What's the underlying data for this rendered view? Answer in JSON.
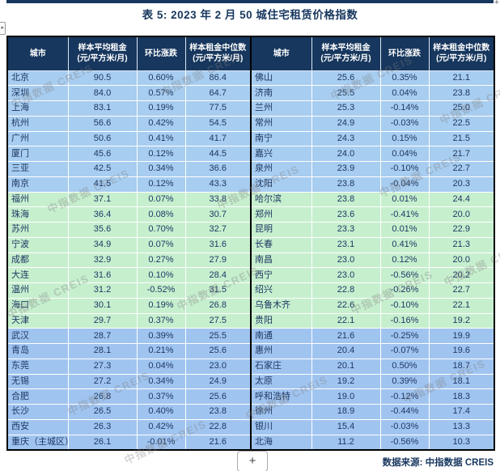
{
  "title": "表 5: 2023 年 2 月 50 城住宅租赁价格指数",
  "source_note": "数据来源: 中指数据 CREIS",
  "add_button_label": "+",
  "top_right_plus": "+",
  "panel_handle_glyph": "▸",
  "watermark": {
    "text": "中指数据 CREIS"
  },
  "colors": {
    "header_bg": "#17375E",
    "band_blue_top": "#A7CDF0",
    "band_green": "#C6EFCE",
    "band_blue_bottom": "#A0C4F0",
    "body_text": "#1F3864",
    "title_text": "#17375E"
  },
  "columns": [
    "城市",
    "样本平均租金\n(元/平方米/月)",
    "环比涨跌",
    "样本租金中位数\n(元/平方米/月)"
  ],
  "tables": [
    {
      "rows": [
        {
          "city": "北京",
          "avg": "90.5",
          "change": "0.60%",
          "median": "86.4",
          "band": "blue1"
        },
        {
          "city": "深圳",
          "avg": "84.0",
          "change": "0.57%",
          "median": "64.7",
          "band": "blue1"
        },
        {
          "city": "上海",
          "avg": "83.1",
          "change": "0.19%",
          "median": "77.5",
          "band": "blue1"
        },
        {
          "city": "杭州",
          "avg": "56.6",
          "change": "0.42%",
          "median": "54.5",
          "band": "blue1"
        },
        {
          "city": "广州",
          "avg": "50.6",
          "change": "0.41%",
          "median": "41.7",
          "band": "blue1"
        },
        {
          "city": "厦门",
          "avg": "45.6",
          "change": "0.12%",
          "median": "44.5",
          "band": "blue1"
        },
        {
          "city": "三亚",
          "avg": "42.5",
          "change": "0.34%",
          "median": "36.6",
          "band": "blue1"
        },
        {
          "city": "南京",
          "avg": "41.5",
          "change": "0.12%",
          "median": "43.3",
          "band": "blue1"
        },
        {
          "city": "福州",
          "avg": "37.1",
          "change": "0.07%",
          "median": "33.8",
          "band": "green"
        },
        {
          "city": "珠海",
          "avg": "36.4",
          "change": "0.08%",
          "median": "30.7",
          "band": "green"
        },
        {
          "city": "苏州",
          "avg": "35.6",
          "change": "0.70%",
          "median": "32.7",
          "band": "green"
        },
        {
          "city": "宁波",
          "avg": "34.9",
          "change": "0.07%",
          "median": "31.6",
          "band": "green"
        },
        {
          "city": "成都",
          "avg": "32.9",
          "change": "0.27%",
          "median": "27.9",
          "band": "green"
        },
        {
          "city": "大连",
          "avg": "31.6",
          "change": "0.10%",
          "median": "28.4",
          "band": "green"
        },
        {
          "city": "温州",
          "avg": "31.2",
          "change": "-0.52%",
          "median": "31.5",
          "band": "green"
        },
        {
          "city": "海口",
          "avg": "30.1",
          "change": "0.19%",
          "median": "26.8",
          "band": "green"
        },
        {
          "city": "天津",
          "avg": "29.7",
          "change": "0.37%",
          "median": "27.5",
          "band": "green"
        },
        {
          "city": "武汉",
          "avg": "28.7",
          "change": "0.39%",
          "median": "25.5",
          "band": "blue2"
        },
        {
          "city": "青岛",
          "avg": "28.1",
          "change": "0.21%",
          "median": "25.6",
          "band": "blue2"
        },
        {
          "city": "东莞",
          "avg": "27.3",
          "change": "0.04%",
          "median": "23.0",
          "band": "blue2"
        },
        {
          "city": "无锡",
          "avg": "27.2",
          "change": "0.34%",
          "median": "24.9",
          "band": "blue2"
        },
        {
          "city": "合肥",
          "avg": "26.8",
          "change": "0.37%",
          "median": "25.6",
          "band": "blue2"
        },
        {
          "city": "长沙",
          "avg": "26.5",
          "change": "0.40%",
          "median": "23.8",
          "band": "blue2"
        },
        {
          "city": "西安",
          "avg": "26.3",
          "change": "0.42%",
          "median": "22.8",
          "band": "blue2"
        },
        {
          "city": "重庆（主城区）",
          "avg": "26.1",
          "change": "-0.01%",
          "median": "21.6",
          "band": "blue2"
        }
      ]
    },
    {
      "rows": [
        {
          "city": "佛山",
          "avg": "25.6",
          "change": "0.35%",
          "median": "21.1",
          "band": "blue1"
        },
        {
          "city": "济南",
          "avg": "25.5",
          "change": "0.04%",
          "median": "23.8",
          "band": "blue1"
        },
        {
          "city": "兰州",
          "avg": "25.3",
          "change": "-0.14%",
          "median": "25.0",
          "band": "blue1"
        },
        {
          "city": "常州",
          "avg": "24.9",
          "change": "-0.03%",
          "median": "22.5",
          "band": "blue1"
        },
        {
          "city": "南宁",
          "avg": "24.3",
          "change": "0.15%",
          "median": "21.5",
          "band": "blue1"
        },
        {
          "city": "嘉兴",
          "avg": "24.0",
          "change": "0.04%",
          "median": "21.7",
          "band": "blue1"
        },
        {
          "city": "泉州",
          "avg": "23.9",
          "change": "-0.10%",
          "median": "22.7",
          "band": "blue1"
        },
        {
          "city": "沈阳",
          "avg": "23.8",
          "change": "-0.04%",
          "median": "20.3",
          "band": "blue1"
        },
        {
          "city": "哈尔滨",
          "avg": "23.8",
          "change": "0.01%",
          "median": "24.4",
          "band": "green"
        },
        {
          "city": "郑州",
          "avg": "23.6",
          "change": "-0.41%",
          "median": "20.0",
          "band": "green"
        },
        {
          "city": "昆明",
          "avg": "23.3",
          "change": "0.01%",
          "median": "22.9",
          "band": "green"
        },
        {
          "city": "长春",
          "avg": "23.1",
          "change": "0.41%",
          "median": "21.3",
          "band": "green"
        },
        {
          "city": "南昌",
          "avg": "23.0",
          "change": "0.12%",
          "median": "20.0",
          "band": "green"
        },
        {
          "city": "西宁",
          "avg": "23.0",
          "change": "-0.56%",
          "median": "20.2",
          "band": "green"
        },
        {
          "city": "绍兴",
          "avg": "22.8",
          "change": "-0.26%",
          "median": "22.7",
          "band": "green"
        },
        {
          "city": "乌鲁木齐",
          "avg": "22.6",
          "change": "-0.10%",
          "median": "22.1",
          "band": "green"
        },
        {
          "city": "贵阳",
          "avg": "22.1",
          "change": "-0.16%",
          "median": "19.2",
          "band": "green"
        },
        {
          "city": "南通",
          "avg": "21.6",
          "change": "-0.25%",
          "median": "19.9",
          "band": "blue2"
        },
        {
          "city": "惠州",
          "avg": "20.4",
          "change": "-0.07%",
          "median": "19.6",
          "band": "blue2"
        },
        {
          "city": "石家庄",
          "avg": "20.1",
          "change": "0.50%",
          "median": "18.7",
          "band": "blue2"
        },
        {
          "city": "太原",
          "avg": "19.2",
          "change": "0.39%",
          "median": "18.1",
          "band": "blue2"
        },
        {
          "city": "呼和浩特",
          "avg": "19.0",
          "change": "-0.12%",
          "median": "18.3",
          "band": "blue2"
        },
        {
          "city": "徐州",
          "avg": "18.9",
          "change": "-0.44%",
          "median": "17.4",
          "band": "blue2"
        },
        {
          "city": "银川",
          "avg": "15.4",
          "change": "-0.03%",
          "median": "13.3",
          "band": "blue2"
        },
        {
          "city": "北海",
          "avg": "11.2",
          "change": "-0.56%",
          "median": "10.3",
          "band": "blue2"
        }
      ]
    }
  ]
}
